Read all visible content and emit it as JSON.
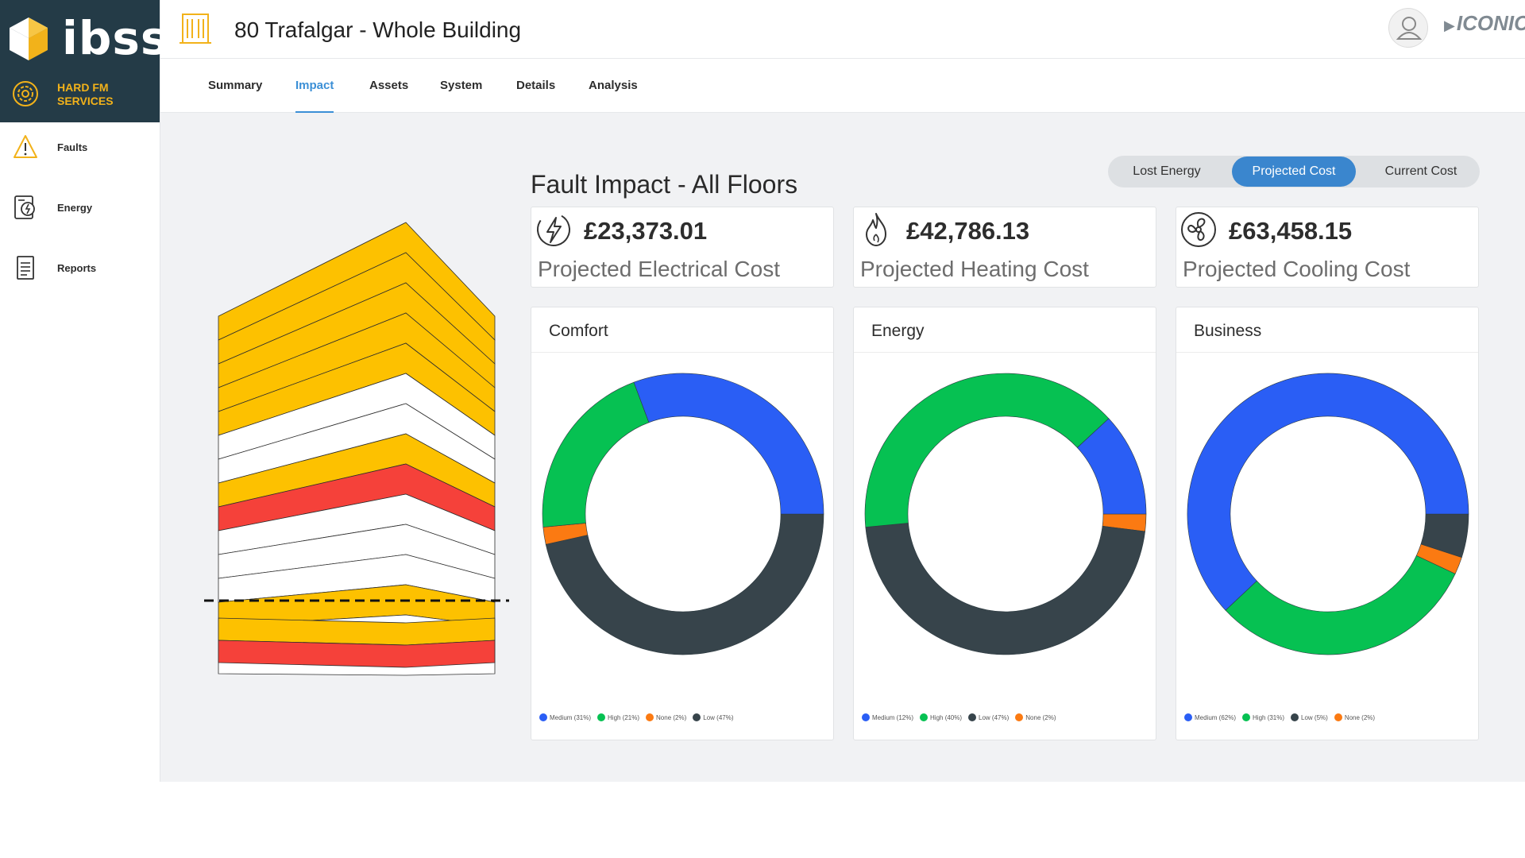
{
  "brand": {
    "logo_text": "ibss",
    "module_label": "HARD FM\nSERVICES"
  },
  "sidebar": {
    "items": [
      {
        "label": "Faults",
        "icon": "warning-icon"
      },
      {
        "label": "Energy",
        "icon": "energy-meter-icon"
      },
      {
        "label": "Reports",
        "icon": "report-icon"
      }
    ]
  },
  "header": {
    "title": "80 Trafalgar - Whole Building",
    "vendor": "ICONICS"
  },
  "tabs": [
    {
      "label": "Summary"
    },
    {
      "label": "Impact"
    },
    {
      "label": "Assets"
    },
    {
      "label": "System"
    },
    {
      "label": "Details"
    },
    {
      "label": "Analysis"
    }
  ],
  "active_tab": "Impact",
  "toggle": {
    "options": [
      "Lost Energy",
      "Projected Cost",
      "Current Cost"
    ],
    "selected": "Projected Cost"
  },
  "section_title": "Fault Impact - All Floors",
  "stats": [
    {
      "value": "£23,373.01",
      "caption": "Projected Electrical Cost",
      "icon": "lightning-icon"
    },
    {
      "value": "£42,786.13",
      "caption": "Projected Heating Cost",
      "icon": "flame-icon"
    },
    {
      "value": "£63,458.15",
      "caption": "Projected Cooling Cost",
      "icon": "fan-icon"
    }
  ],
  "colors": {
    "Medium": "#2a5ef5",
    "High": "#06c152",
    "None": "#fb7a12",
    "Low": "#37444b",
    "accent": "#3a86ce",
    "brand_dark": "#243b47",
    "brand_yellow": "#f2b21a"
  },
  "building": {
    "floors": [
      "yellow",
      "yellow",
      "yellow",
      "yellow",
      "yellow",
      "white",
      "white",
      "yellow",
      "red",
      "white",
      "white",
      "white",
      "yellow",
      "white",
      "white",
      "yellow",
      "red"
    ]
  },
  "chart_data": [
    {
      "type": "pie",
      "title": "Comfort",
      "series": [
        {
          "name": "Medium",
          "label": "Medium (31%)",
          "value": 31
        },
        {
          "name": "High",
          "label": "High (21%)",
          "value": 21
        },
        {
          "name": "None",
          "label": "None (2%)",
          "value": 2
        },
        {
          "name": "Low",
          "label": "Low (47%)",
          "value": 47
        }
      ],
      "render_order": [
        "Low",
        "None",
        "High",
        "Medium"
      ]
    },
    {
      "type": "pie",
      "title": "Energy",
      "series": [
        {
          "name": "Medium",
          "label": "Medium (12%)",
          "value": 12
        },
        {
          "name": "High",
          "label": "High (40%)",
          "value": 40
        },
        {
          "name": "Low",
          "label": "Low (47%)",
          "value": 47
        },
        {
          "name": "None",
          "label": "None (2%)",
          "value": 2
        }
      ],
      "render_order": [
        "None",
        "Low",
        "High",
        "Medium"
      ]
    },
    {
      "type": "pie",
      "title": "Business",
      "series": [
        {
          "name": "Medium",
          "label": "Medium (62%)",
          "value": 62
        },
        {
          "name": "High",
          "label": "High (31%)",
          "value": 31
        },
        {
          "name": "Low",
          "label": "Low (5%)",
          "value": 5
        },
        {
          "name": "None",
          "label": "None (2%)",
          "value": 2
        }
      ],
      "render_order": [
        "Low",
        "None",
        "High",
        "Medium"
      ]
    }
  ]
}
